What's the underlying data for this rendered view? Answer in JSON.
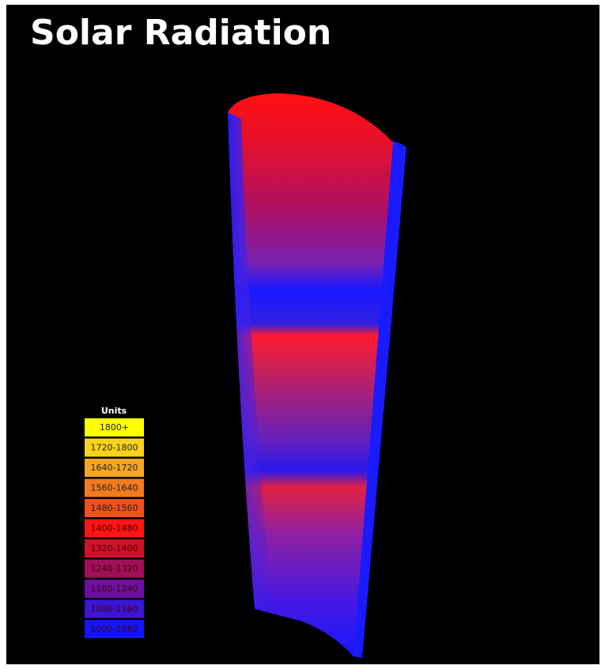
{
  "title": "Solar Radiation",
  "legend": {
    "title": "Units",
    "items": [
      {
        "label": "1800+",
        "color": "#ffff00"
      },
      {
        "label": "1720-1800",
        "color": "#ffd21a"
      },
      {
        "label": "1640-1720",
        "color": "#f5a623"
      },
      {
        "label": "1560-1640",
        "color": "#f27a1e"
      },
      {
        "label": "1480-1560",
        "color": "#f0501c"
      },
      {
        "label": "1400-1480",
        "color": "#ff1414"
      },
      {
        "label": "1320-1400",
        "color": "#d0102c"
      },
      {
        "label": "1240-1320",
        "color": "#a01058"
      },
      {
        "label": "1160-1240",
        "color": "#6c10a0"
      },
      {
        "label": "1080-1160",
        "color": "#3c14d4"
      },
      {
        "label": "1000-1080",
        "color": "#1414ff"
      }
    ]
  }
}
